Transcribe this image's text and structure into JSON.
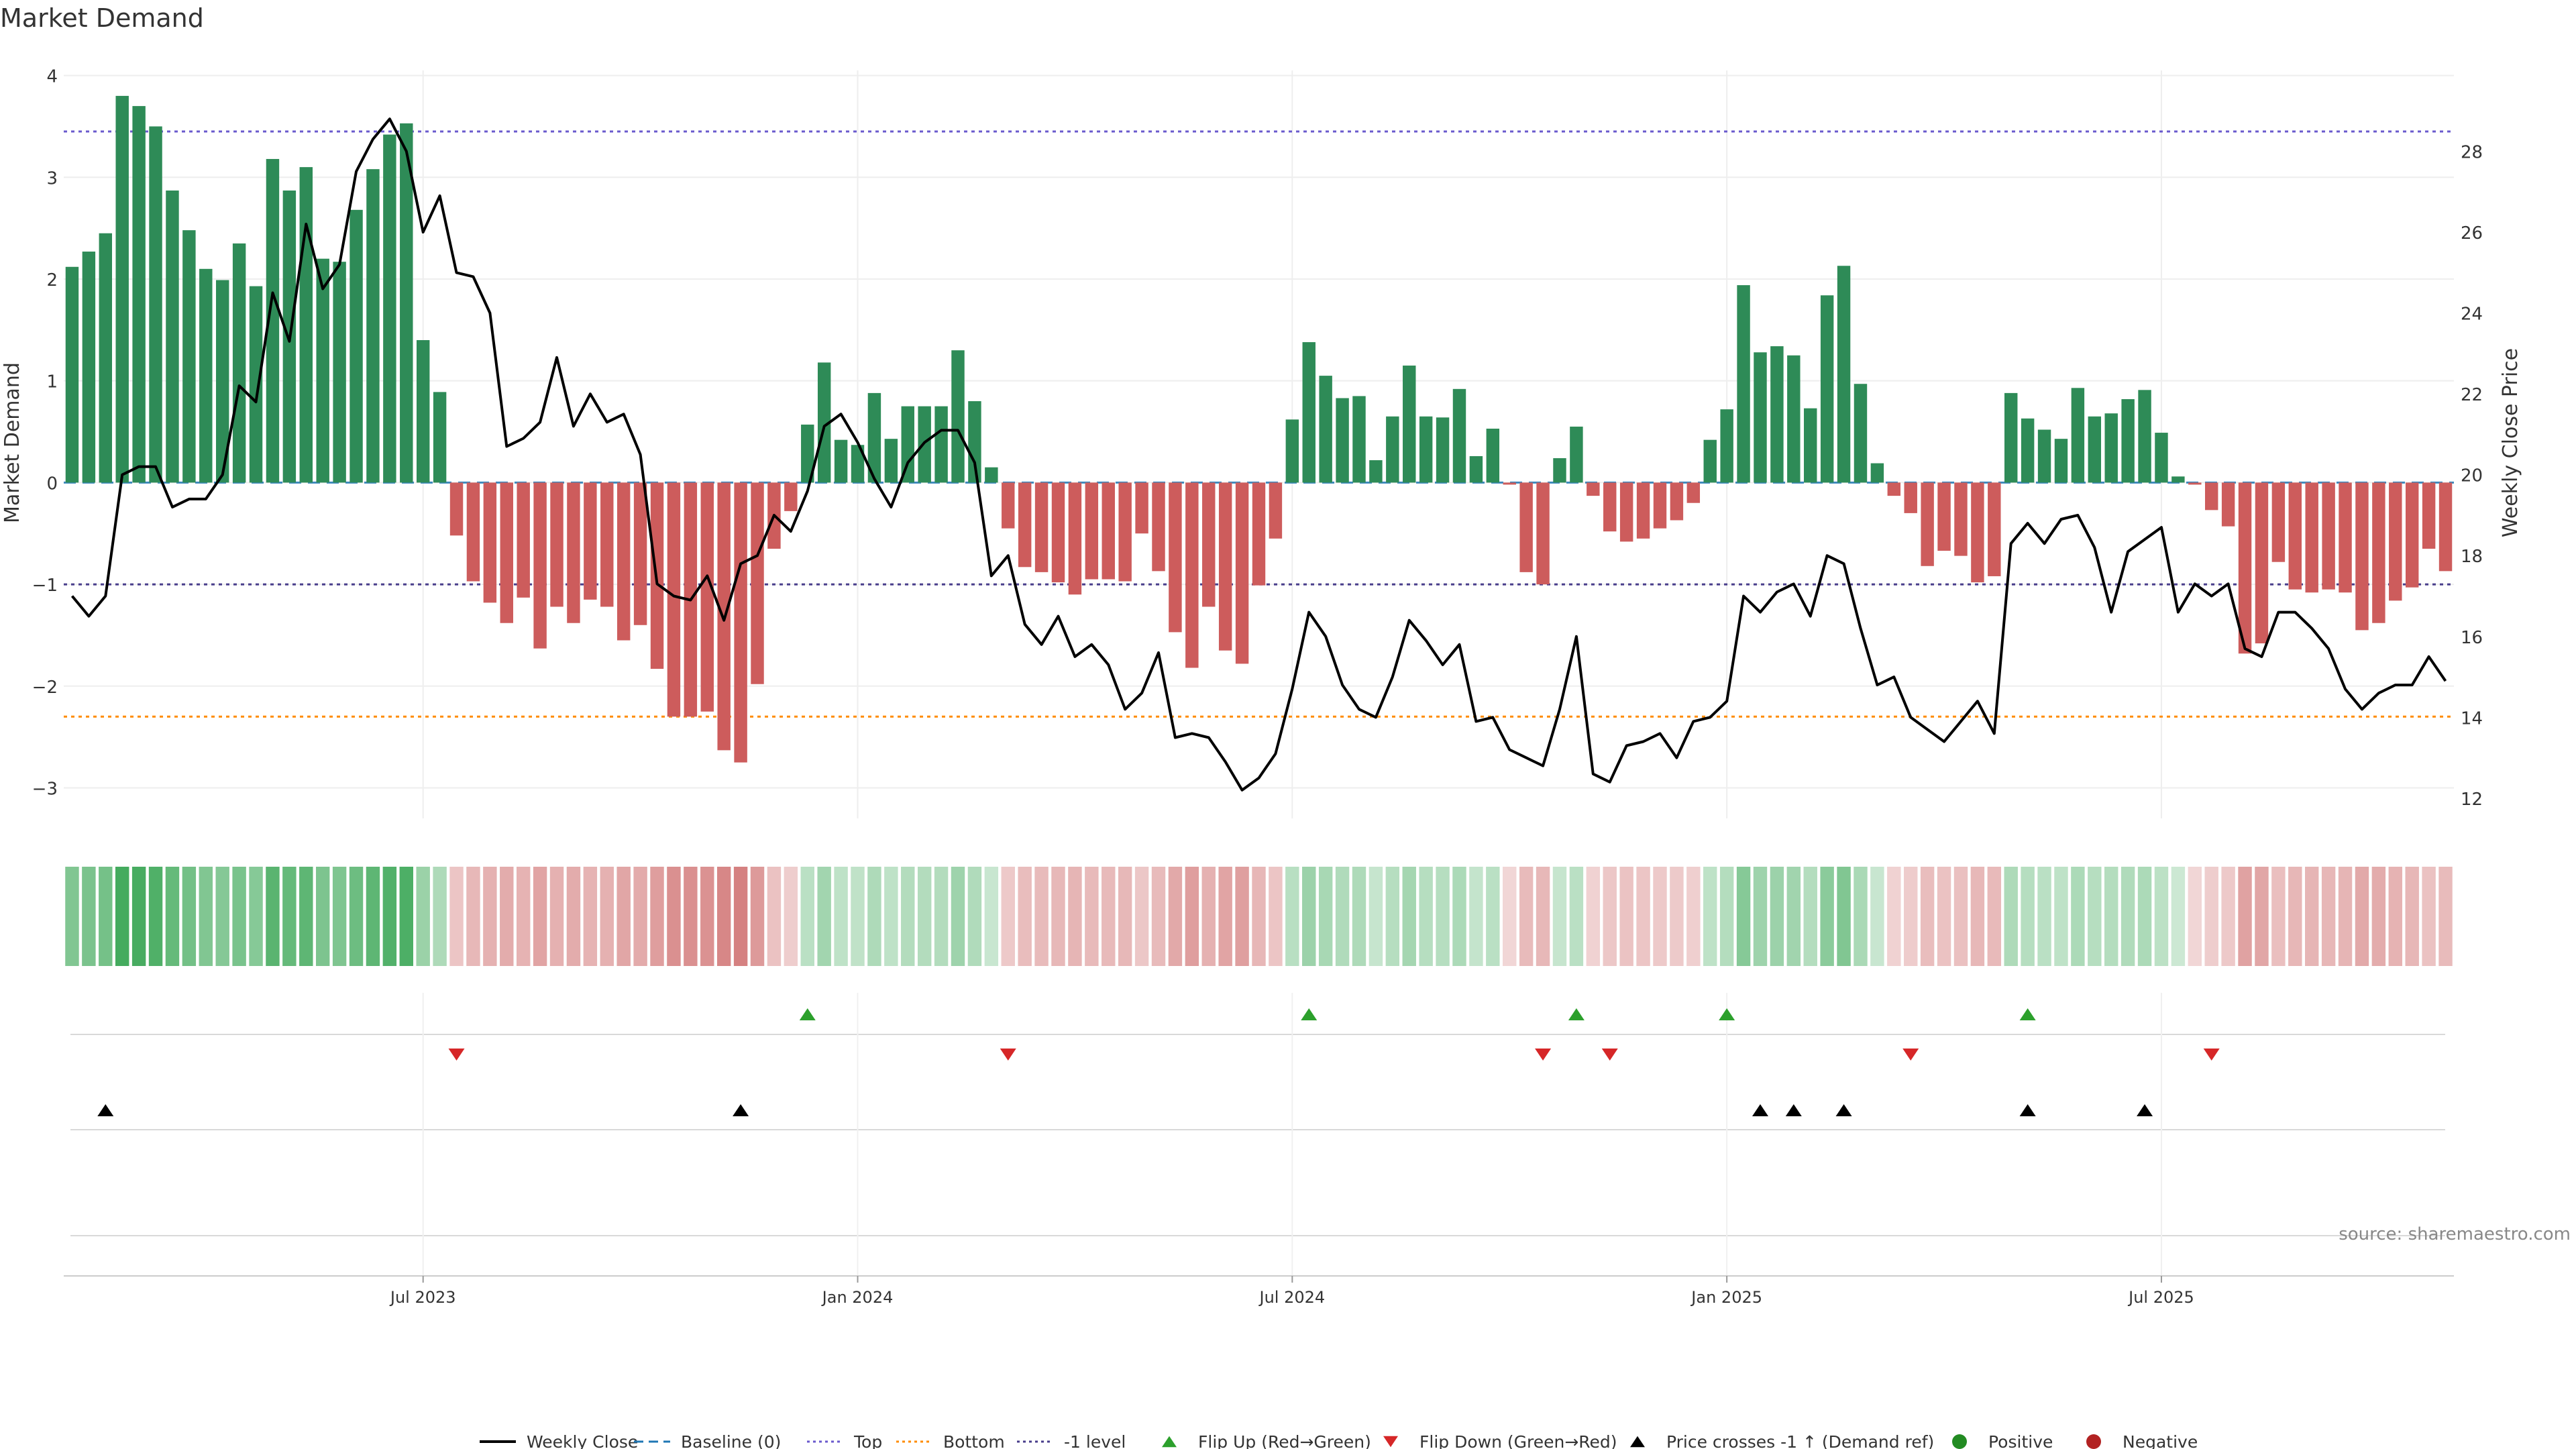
{
  "chart_data": {
    "type": "bar",
    "title": "Market Demand",
    "ylabel_left": "Market Demand",
    "ylabel_right": "Weekly Close Price",
    "ylim_left": [
      -3.3,
      4.05
    ],
    "ylim_right": [
      11.5,
      30
    ],
    "yticks_left": [
      4,
      3,
      2,
      1,
      0,
      -1,
      -2,
      -3
    ],
    "yticks_left_labels": [
      "4",
      "3",
      "2",
      "1",
      "0",
      "−1",
      "−2",
      "−3"
    ],
    "yticks_right": [
      28,
      26,
      24,
      22,
      20,
      18,
      16,
      14,
      12
    ],
    "yticks_right_labels": [
      "28",
      "26",
      "24",
      "22",
      "20",
      "18",
      "16",
      "14",
      "12"
    ],
    "x_tick_labels": [
      "Jul 2023",
      "Jan 2024",
      "Jul 2024",
      "Jan 2025",
      "Jul 2025"
    ],
    "x_tick_weeks": [
      21.5,
      47.5,
      73.5,
      99.5,
      125.5
    ],
    "reference_lines": {
      "top": 3.45,
      "baseline": 0,
      "minus_one": -1,
      "bottom": -2.3
    },
    "demand_values": [
      2.12,
      2.27,
      2.45,
      3.8,
      3.7,
      3.5,
      2.87,
      2.48,
      2.1,
      1.99,
      2.35,
      1.93,
      3.18,
      2.87,
      3.1,
      2.2,
      2.17,
      2.68,
      3.08,
      3.42,
      3.53,
      1.4,
      0.89,
      -0.52,
      -0.97,
      -1.18,
      -1.38,
      -1.13,
      -1.63,
      -1.22,
      -1.38,
      -1.15,
      -1.22,
      -1.55,
      -1.4,
      -1.83,
      -2.3,
      -2.3,
      -2.25,
      -2.63,
      -2.75,
      -1.98,
      -0.65,
      -0.28,
      0.57,
      1.18,
      0.42,
      0.37,
      0.88,
      0.43,
      0.75,
      0.75,
      0.75,
      1.3,
      0.8,
      0.15,
      -0.45,
      -0.83,
      -0.88,
      -0.98,
      -1.1,
      -0.95,
      -0.95,
      -0.97,
      -0.5,
      -0.87,
      -1.47,
      -1.82,
      -1.22,
      -1.65,
      -1.78,
      -1.01,
      -0.55,
      0.62,
      1.38,
      1.05,
      0.83,
      0.85,
      0.22,
      0.65,
      1.15,
      0.65,
      0.64,
      0.92,
      0.26,
      0.53,
      -0.02,
      -0.88,
      -1.0,
      0.24,
      0.55,
      -0.13,
      -0.48,
      -0.58,
      -0.55,
      -0.45,
      -0.37,
      -0.2,
      0.42,
      0.72,
      1.94,
      1.28,
      1.34,
      1.25,
      0.73,
      1.84,
      2.13,
      0.97,
      0.19,
      -0.13,
      -0.3,
      -0.82,
      -0.67,
      -0.72,
      -0.98,
      -0.92,
      0.88,
      0.63,
      0.52,
      0.43,
      0.93,
      0.65,
      0.68,
      0.82,
      0.91,
      0.49,
      0.06,
      -0.02,
      -0.27,
      -0.43,
      -1.68,
      -1.58,
      -0.78,
      -1.05,
      -1.08,
      -1.05,
      -1.08,
      -1.45,
      -1.38,
      -1.16,
      -1.03,
      -0.65,
      -0.87
    ],
    "weekly_close": [
      17.0,
      16.5,
      17.0,
      20.0,
      20.2,
      20.2,
      19.2,
      19.4,
      19.4,
      20.0,
      22.2,
      21.8,
      24.5,
      23.3,
      26.2,
      24.6,
      25.2,
      27.5,
      28.3,
      28.8,
      28.0,
      26.0,
      26.9,
      25.0,
      24.9,
      24.0,
      20.7,
      20.9,
      21.3,
      22.9,
      21.2,
      22.0,
      21.3,
      21.5,
      20.5,
      17.3,
      17.0,
      16.9,
      17.5,
      16.4,
      17.8,
      18.0,
      19.0,
      18.6,
      19.6,
      21.2,
      21.5,
      20.8,
      19.9,
      19.2,
      20.3,
      20.8,
      21.1,
      21.1,
      20.3,
      17.5,
      18.0,
      16.3,
      15.8,
      16.5,
      15.5,
      15.8,
      15.3,
      14.2,
      14.6,
      15.6,
      13.5,
      13.6,
      13.5,
      12.9,
      12.2,
      12.5,
      13.1,
      14.7,
      16.6,
      16.0,
      14.8,
      14.2,
      14.0,
      15.0,
      16.4,
      15.9,
      15.3,
      15.8,
      13.9,
      14.0,
      13.2,
      13.0,
      12.8,
      14.2,
      16.0,
      12.6,
      12.4,
      13.3,
      13.4,
      13.6,
      13.0,
      13.9,
      14.0,
      14.4,
      17.0,
      16.6,
      17.1,
      17.3,
      16.5,
      18.0,
      17.8,
      16.2,
      14.8,
      15.0,
      14.0,
      13.7,
      13.4,
      13.9,
      14.4,
      13.6,
      18.3,
      18.8,
      18.3,
      18.9,
      19.0,
      18.2,
      16.6,
      18.1,
      18.4,
      18.7,
      16.6,
      17.3,
      17.0,
      17.3,
      15.7,
      15.5,
      16.6,
      16.6,
      16.2,
      15.7,
      14.7,
      14.2,
      14.6,
      14.8,
      14.8,
      15.5,
      14.9
    ],
    "flip_up_weeks": [
      44,
      74,
      90,
      99,
      117
    ],
    "flip_down_weeks": [
      23,
      56,
      88,
      92,
      110,
      128
    ],
    "price_cross_weeks": [
      2,
      40,
      101,
      103,
      106,
      117,
      124
    ],
    "legend": [
      {
        "label": "Weekly Close",
        "style": "line"
      },
      {
        "label": "Baseline (0)",
        "style": "dash"
      },
      {
        "label": "Top",
        "style": "dot"
      },
      {
        "label": "Bottom",
        "style": "dot"
      },
      {
        "label": "-1 level",
        "style": "dot"
      },
      {
        "label": "Flip Up (Red→Green)",
        "style": "tri-up"
      },
      {
        "label": "Flip Down (Green→Red)",
        "style": "tri-down"
      },
      {
        "label": "Price crosses -1 ↑ (Demand ref)",
        "style": "tri-up-black"
      },
      {
        "label": "Positive",
        "style": "dot-marker"
      },
      {
        "label": "Negative",
        "style": "dot-marker"
      }
    ],
    "source": "source: sharemaestro.com"
  },
  "colors": {
    "positive_bar": "#2e8b57",
    "negative_bar": "#cd5c5c",
    "price_line": "#000000",
    "baseline": "#1f77b4",
    "top_line": "#6a5acd",
    "bottom_line": "#ff8c00",
    "minus_one_line": "#483d8b",
    "flip_up": "#2ca02c",
    "flip_down": "#d62728",
    "positive_marker": "#228b22",
    "negative_marker": "#b22222",
    "grid": "#eeeeee"
  }
}
